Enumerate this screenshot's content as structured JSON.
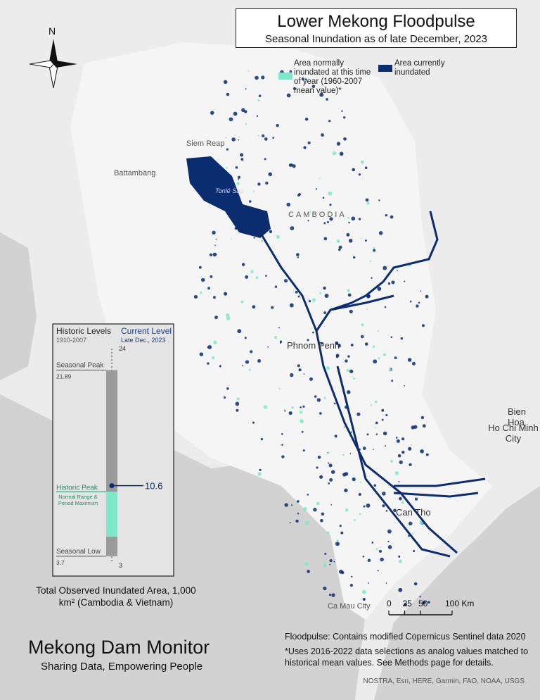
{
  "title": "Lower Mekong Floodpulse",
  "subtitle": "Seasonal Inundation as of late December, 2023",
  "north_arrow": "N",
  "legend": [
    {
      "label": "Area normally inundated at this time of year (1960-2007 mean value)*",
      "color": "#7fe8c8"
    },
    {
      "label": "Area currently inundated",
      "color": "#0b2c6f"
    }
  ],
  "place_labels": [
    "Siem Reap",
    "Battambang",
    "Tonlé Sap",
    "CAMBODIA",
    "Phnom Penh",
    "Bien Hoa",
    "Ho Chi Minh City",
    "Can Tho",
    "Ca Mau City"
  ],
  "gauge": {
    "historic_heading": "Historic Levels",
    "historic_period": "1910-2007",
    "current_heading": "Current Level",
    "current_period": "Late Dec., 2023",
    "scale_max": 24,
    "scale_min": 3,
    "seasonal_peak_label": "Seasonal Peak",
    "seasonal_peak": 21.89,
    "seasonal_low_label": "Seasonal Low",
    "seasonal_low": 3.7,
    "historic_peak_label": "Historic Peak",
    "historic_peak_note": "Normal Range & Period Maximum",
    "normal_range": [
      10.0,
      5.6
    ],
    "current_value": 10.6,
    "caption": "Total Observed Inundated Area, 1,000 km² (Cambodia & Vietnam)"
  },
  "scale_bar": {
    "ticks": [
      0,
      25,
      50,
      {
        "value": 100,
        "label": "100 Km"
      }
    ]
  },
  "brand": {
    "name": "Mekong Dam Monitor",
    "tagline": "Sharing Data, Empowering People"
  },
  "notes": {
    "source": "Floodpulse: Contains modified Copernicus Sentinel data 2020",
    "footnote": "*Uses 2016-2022 data selections as analog values matched to historical mean values. See Methods page for details.",
    "credits": "NOSTRA, Esri, HERE, Garmin, FAO, NOAA, USGS"
  }
}
